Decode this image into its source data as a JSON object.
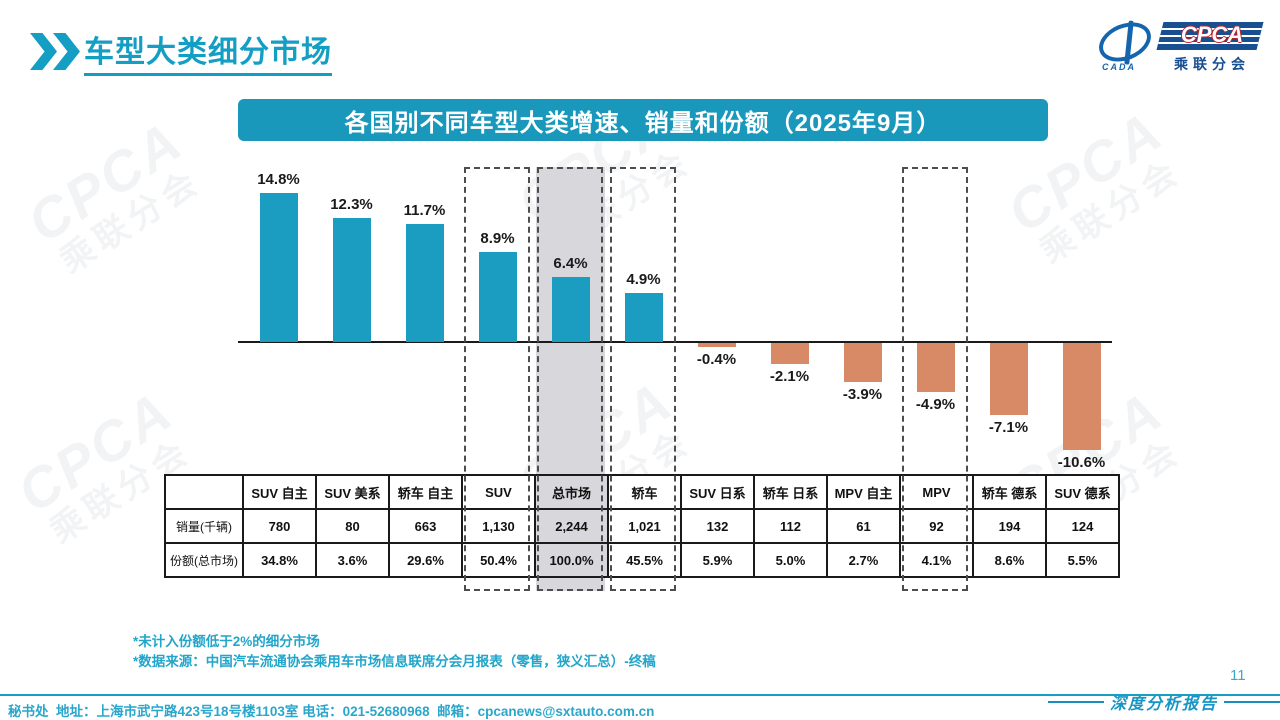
{
  "header": {
    "title": "车型大类细分市场"
  },
  "logo": {
    "cada_text": "CADA",
    "cpca_text": "CPCA",
    "sub_text": "乘联分会"
  },
  "chart_title": "各国别不同车型大类增速、销量和份额（2025年9月）",
  "chart_data": {
    "type": "bar",
    "title": "各国别不同车型大类增速、销量和份额（2025年9月）",
    "categories": [
      "SUV 自主",
      "SUV 美系",
      "轿车 自主",
      "SUV",
      "总市场",
      "轿车",
      "SUV 日系",
      "轿车 日系",
      "MPV 自主",
      "MPV",
      "轿车 德系",
      "SUV 德系"
    ],
    "values": [
      14.8,
      12.3,
      11.7,
      8.9,
      6.4,
      4.9,
      -0.4,
      -2.1,
      -3.9,
      -4.9,
      -7.1,
      -10.6
    ],
    "value_labels": [
      "14.8%",
      "12.3%",
      "11.7%",
      "8.9%",
      "6.4%",
      "4.9%",
      "-0.4%",
      "-2.1%",
      "-3.9%",
      "-4.9%",
      "-7.1%",
      "-10.6%"
    ],
    "bar_color_positive": "#1A9DC0",
    "bar_color_negative": "#D88A66",
    "highlighted_categories": [
      "SUV",
      "总市场",
      "轿车",
      "MPV"
    ],
    "shaded_category": "总市场",
    "ylim": [
      -12,
      16
    ],
    "grid": false,
    "table": {
      "row_labels": [
        "销量(千辆)",
        "份额(总市场)"
      ],
      "rows": [
        [
          "780",
          "80",
          "663",
          "1,130",
          "2,244",
          "1,021",
          "132",
          "112",
          "61",
          "92",
          "194",
          "124"
        ],
        [
          "34.8%",
          "3.6%",
          "29.6%",
          "50.4%",
          "100.0%",
          "45.5%",
          "5.9%",
          "5.0%",
          "2.7%",
          "4.1%",
          "8.6%",
          "5.5%"
        ]
      ]
    }
  },
  "notes": {
    "line1": "*未计入份额低于2%的细分市场",
    "line2": "*数据来源：中国汽车流通协会乘用车市场信息联席分会月报表（零售，狭义汇总）-终稿"
  },
  "footer": {
    "contact": "秘书处  地址：上海市武宁路423号18号楼1103室 电话：021-52680968  邮箱：cpcanews@sxtauto.com.cn",
    "page_number": "11",
    "report_label": "深度分析报告"
  },
  "watermark": {
    "line1": "CPCA",
    "line2": "乘联分会"
  }
}
